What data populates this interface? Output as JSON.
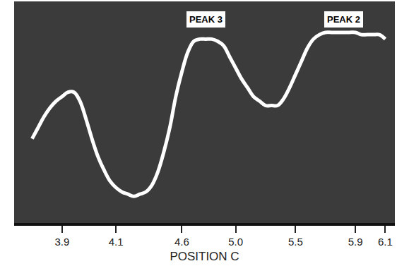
{
  "chart_data": {
    "type": "line",
    "x_label": "POSITION C",
    "categories": [
      null,
      null,
      null,
      null,
      null,
      "3.9",
      null,
      null,
      null,
      null,
      null,
      null,
      null,
      null,
      "4.1",
      null,
      null,
      null,
      null,
      null,
      null,
      null,
      null,
      null,
      null,
      "4.6",
      null,
      null,
      null,
      null,
      null,
      null,
      null,
      null,
      "5.0",
      null,
      null,
      null,
      null,
      null,
      null,
      null,
      null,
      null,
      "5.5",
      null,
      null,
      null,
      null,
      null,
      null,
      null,
      null,
      null,
      "5.9",
      null,
      null,
      null,
      null,
      "6.1"
    ],
    "values": [
      38,
      43,
      48,
      52,
      55,
      57,
      59,
      59,
      55,
      47,
      38,
      30,
      24,
      19,
      16,
      14,
      13,
      12,
      13,
      14,
      17,
      23,
      32,
      43,
      57,
      68,
      77,
      82,
      83,
      83,
      83,
      82,
      80,
      75,
      70,
      65,
      61,
      57,
      55,
      53,
      53,
      53,
      56,
      61,
      67,
      73,
      79,
      83,
      85,
      86,
      86,
      86,
      86,
      86,
      86,
      85,
      85,
      85,
      85,
      83
    ],
    "color": "#ffffff",
    "ylim": [
      0,
      100
    ],
    "tick_labels": "x",
    "annotations": [
      {
        "text": "PEAK 3",
        "x": 29,
        "y": 92
      },
      {
        "text": "PEAK 2",
        "x": 52,
        "y": 92
      }
    ]
  }
}
